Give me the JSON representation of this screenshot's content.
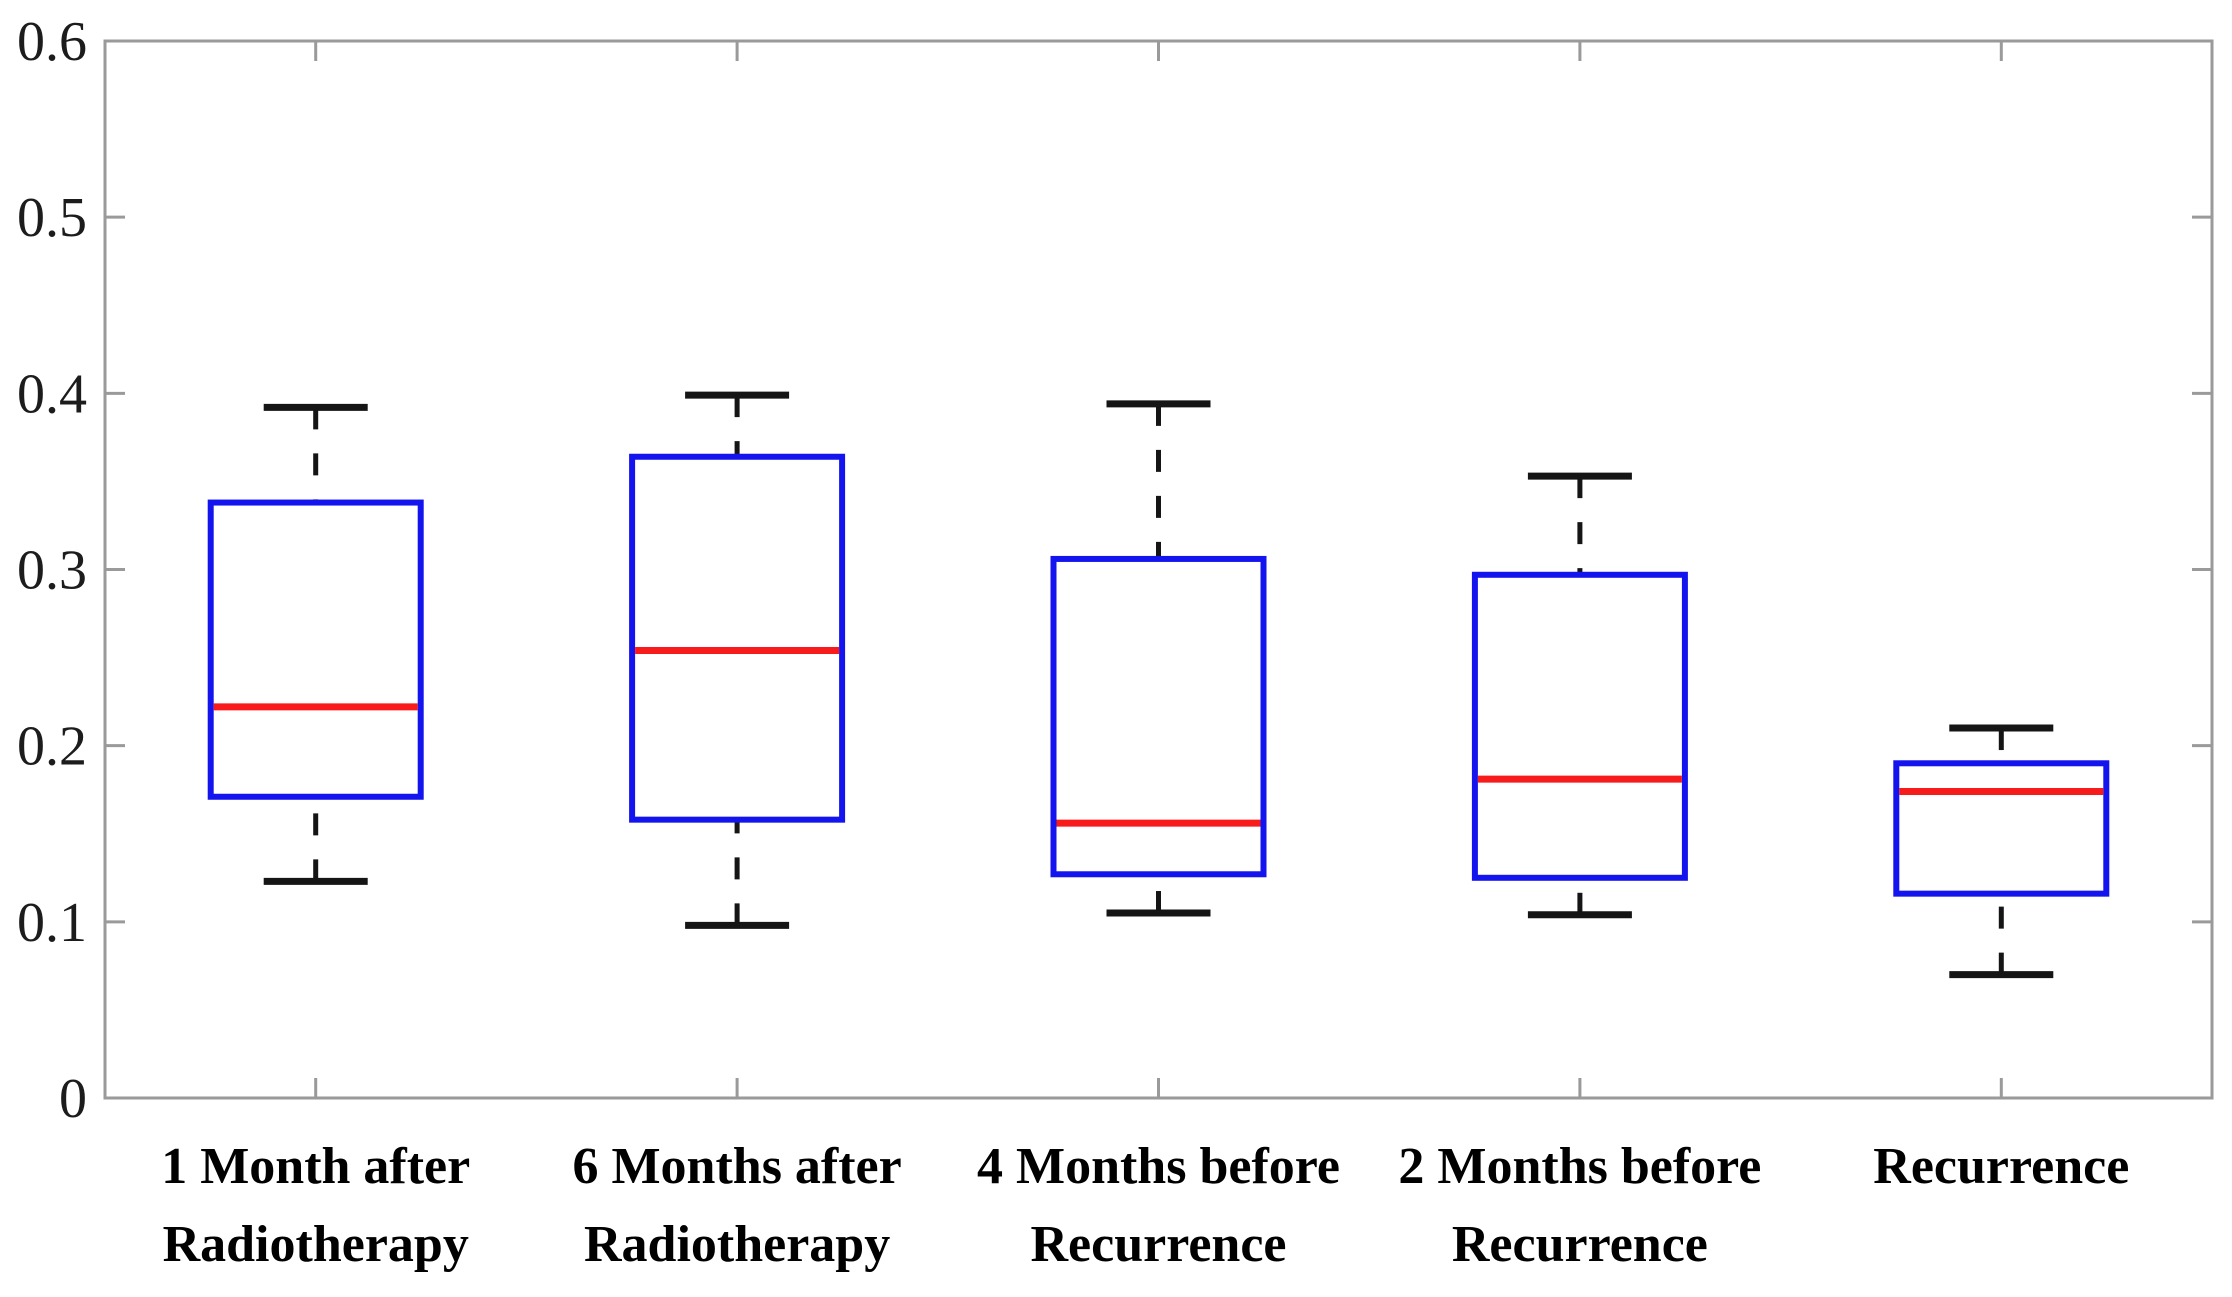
{
  "figure": {
    "background": "#ffffff"
  },
  "chart_data": {
    "type": "boxplot",
    "orientation": "vertical",
    "title": "",
    "xlabel": "",
    "ylabel": "",
    "ylim": [
      0,
      0.6
    ],
    "ytick_values": [
      0,
      0.1,
      0.2,
      0.3,
      0.4,
      0.5,
      0.6
    ],
    "ytick_labels": [
      "0",
      "0.1",
      "0.2",
      "0.3",
      "0.4",
      "0.5",
      "0.6"
    ],
    "grid": false,
    "legend": false,
    "whisker_style": "dashed",
    "categories": [
      {
        "label": "1 Month after Radiotherapy",
        "label_lines": [
          "1 Month after",
          "Radiotherapy"
        ],
        "whisker_low": 0.123,
        "q1": 0.171,
        "median": 0.222,
        "q3": 0.338,
        "whisker_high": 0.392
      },
      {
        "label": "6 Months after Radiotherapy",
        "label_lines": [
          "6 Months after",
          "Radiotherapy"
        ],
        "whisker_low": 0.098,
        "q1": 0.158,
        "median": 0.254,
        "q3": 0.364,
        "whisker_high": 0.399
      },
      {
        "label": "4 Months before Recurrence",
        "label_lines": [
          "4 Months before",
          "Recurrence"
        ],
        "whisker_low": 0.105,
        "q1": 0.127,
        "median": 0.156,
        "q3": 0.306,
        "whisker_high": 0.394
      },
      {
        "label": "2 Months before Recurrence",
        "label_lines": [
          "2 Months before",
          "Recurrence"
        ],
        "whisker_low": 0.104,
        "q1": 0.125,
        "median": 0.181,
        "q3": 0.297,
        "whisker_high": 0.353
      },
      {
        "label": "Recurrence",
        "label_lines": [
          "Recurrence"
        ],
        "whisker_low": 0.07,
        "q1": 0.116,
        "median": 0.174,
        "q3": 0.19,
        "whisker_high": 0.21
      }
    ],
    "colors": {
      "box": "#1414ee",
      "median": "#f81b1b",
      "whisker": "#151515",
      "cap": "#151515",
      "axis_frame": "#9a9a9a",
      "tick": "#9a9a9a",
      "tick_label": "#1c1c1c",
      "category_label": "#000000",
      "background": "#ffffff"
    }
  }
}
